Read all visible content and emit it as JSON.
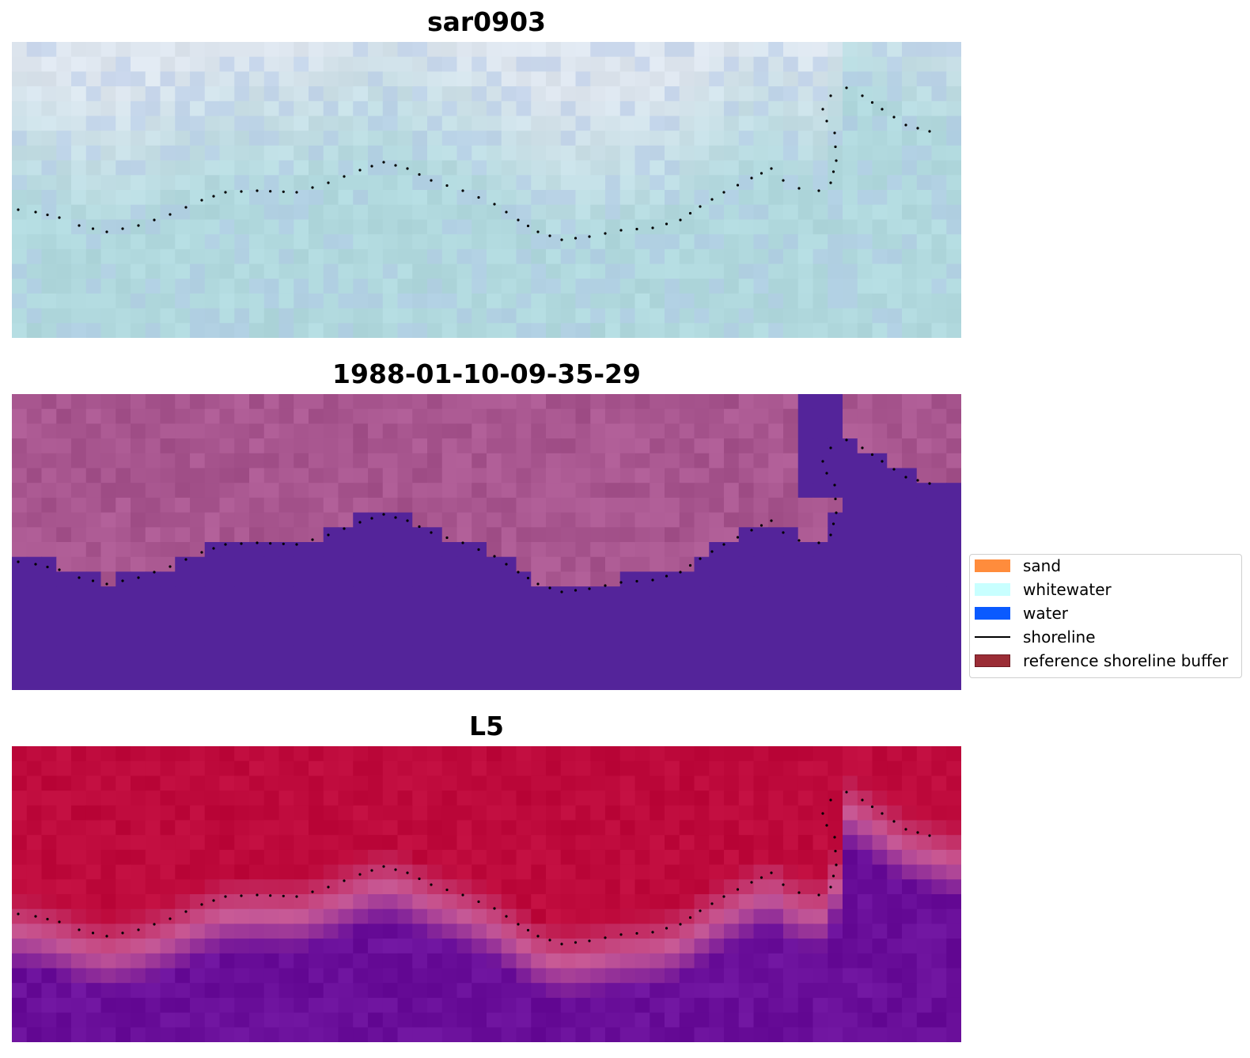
{
  "panels": [
    {
      "title": "sar0903",
      "style": "sar"
    },
    {
      "title": "1988-01-10-09-35-29",
      "style": "classified"
    },
    {
      "title": "L5",
      "style": "index"
    }
  ],
  "legend": {
    "items": [
      {
        "label": "sand",
        "type": "patch",
        "color": "#ff8c3c",
        "edge": "#ff8c3c"
      },
      {
        "label": "whitewater",
        "type": "patch",
        "color": "#c8ffff",
        "edge": "#c8ffff"
      },
      {
        "label": "water",
        "type": "patch",
        "color": "#0a5aff",
        "edge": "#0a5aff"
      },
      {
        "label": "shoreline",
        "type": "line",
        "color": "#000000"
      },
      {
        "label": "reference shoreline buffer",
        "type": "patch",
        "color": "#9b2d36",
        "edge": "#6e1a22"
      }
    ]
  },
  "colors": {
    "sar_base": "#b3dbe0",
    "classified_land": "#a8568f",
    "classified_water": "#54249a",
    "index_land": "#be0a3c",
    "index_water": "#6a0f9a",
    "shoreline_points": "#000000"
  },
  "icons": {
    "legend_line": "shoreline-line-icon"
  }
}
